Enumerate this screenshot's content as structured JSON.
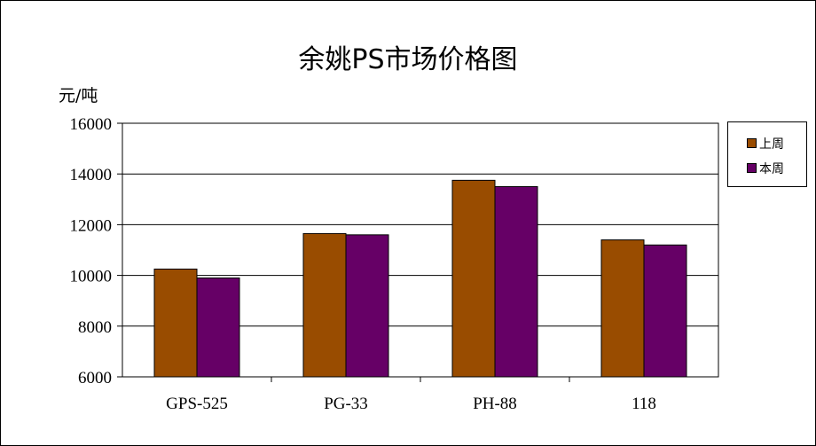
{
  "chart_data": {
    "type": "bar",
    "title": "余姚PS市场价格图",
    "ylabel": "元/吨",
    "xlabel": "",
    "categories": [
      "GPS-525",
      "PG-33",
      "PH-88",
      "118"
    ],
    "series": [
      {
        "name": "上周",
        "color": "#994C00",
        "values": [
          10250,
          11650,
          13750,
          11400
        ]
      },
      {
        "name": "本周",
        "color": "#660066",
        "values": [
          9900,
          11600,
          13500,
          11200
        ]
      }
    ],
    "ylim": [
      6000,
      16000
    ],
    "yticks": [
      6000,
      8000,
      10000,
      12000,
      14000,
      16000
    ],
    "grid": true,
    "legend_position": "right"
  }
}
